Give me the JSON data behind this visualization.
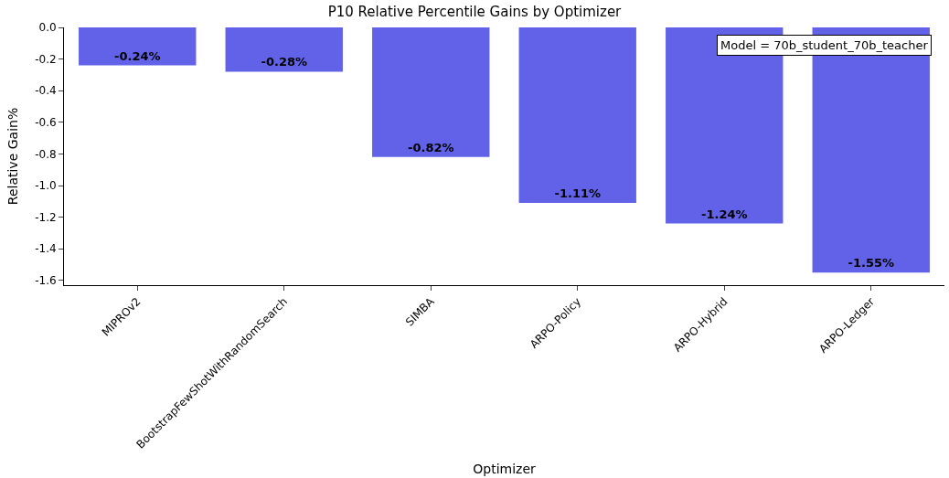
{
  "chart_data": {
    "type": "bar",
    "title": "P10 Relative Percentile Gains by Optimizer",
    "xlabel": "Optimizer",
    "ylabel": "Relative Gain%",
    "categories": [
      "MIPROv2",
      "BootstrapFewShotWithRandomSearch",
      "SIMBA",
      "ARPO-Policy",
      "ARPO-Hybrid",
      "ARPO-Ledger"
    ],
    "values": [
      -0.24,
      -0.28,
      -0.82,
      -1.11,
      -1.24,
      -1.55
    ],
    "value_labels": [
      "-0.24%",
      "-0.28%",
      "-0.82%",
      "-1.11%",
      "-1.24%",
      "-1.55%"
    ],
    "color": "#6262e9",
    "ylim": [
      -1.63,
      0
    ],
    "yticks": [
      {
        "value": 0,
        "label": "0.0"
      },
      {
        "value": -0.2,
        "label": "-0.2"
      },
      {
        "value": -0.4,
        "label": "-0.4"
      },
      {
        "value": -0.6,
        "label": "-0.6"
      },
      {
        "value": -0.8,
        "label": "-0.8"
      },
      {
        "value": -1.0,
        "label": "-1.0"
      },
      {
        "value": -1.2,
        "label": "-1.2"
      },
      {
        "value": -1.4,
        "label": "-1.4"
      },
      {
        "value": -1.6,
        "label": "-1.6"
      }
    ],
    "annotations": [
      "Model = 70b_student_70b_teacher"
    ]
  }
}
